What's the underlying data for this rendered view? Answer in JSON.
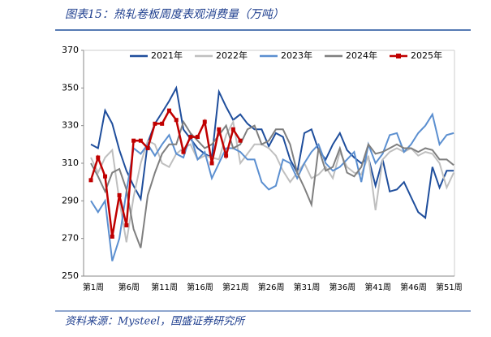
{
  "chart_data": {
    "type": "line",
    "title": "图表15：热轧卷板周度表观消费量（万吨）",
    "source": "资料来源：Mysteel，国盛证券研究所",
    "categories": [
      "第1周",
      null,
      null,
      null,
      null,
      "第6周",
      null,
      null,
      null,
      null,
      "第11周",
      null,
      null,
      null,
      null,
      "第16周",
      null,
      null,
      null,
      null,
      "第21周",
      null,
      null,
      null,
      null,
      "第26周",
      null,
      null,
      null,
      null,
      "第31周",
      null,
      null,
      null,
      null,
      "第36周",
      null,
      null,
      null,
      null,
      "第41周",
      null,
      null,
      null,
      null,
      "第46周",
      null,
      null,
      null,
      null,
      "第51周",
      null
    ],
    "ylim": [
      250,
      370
    ],
    "yticks": [
      250,
      270,
      290,
      310,
      330,
      350,
      370
    ],
    "legend": "top",
    "series": [
      {
        "name": "2021年",
        "color": "#1f4e9c",
        "values": [
          320,
          318,
          338,
          331,
          317,
          306,
          298,
          291,
          321,
          331,
          337,
          343,
          350,
          328,
          323,
          318,
          315,
          313,
          348,
          340,
          333,
          336,
          331,
          328,
          328,
          319,
          326,
          324,
          312,
          305,
          326,
          328,
          317,
          312,
          320,
          326,
          317,
          313,
          310,
          313,
          298,
          312,
          295,
          296,
          300,
          292,
          284,
          281,
          308,
          297,
          306,
          306
        ]
      },
      {
        "name": "2022年",
        "color": "#bfbfbf",
        "values": [
          313,
          305,
          313,
          317,
          290,
          268,
          292,
          310,
          322,
          320,
          310,
          308,
          315,
          318,
          320,
          312,
          314,
          313,
          312,
          325,
          332,
          310,
          315,
          320,
          320,
          318,
          314,
          306,
          300,
          305,
          310,
          302,
          304,
          308,
          302,
          316,
          308,
          305,
          304,
          314,
          285,
          312,
          316,
          318,
          316,
          318,
          314,
          316,
          315,
          310,
          297,
          305
        ]
      },
      {
        "name": "2023年",
        "color": "#5b8fd0",
        "values": [
          290,
          284,
          290,
          258,
          270,
          295,
          318,
          315,
          320,
          314,
          320,
          325,
          315,
          313,
          325,
          312,
          316,
          302,
          310,
          318,
          318,
          316,
          312,
          312,
          300,
          296,
          298,
          312,
          310,
          302,
          310,
          316,
          320,
          310,
          306,
          308,
          312,
          316,
          300,
          320,
          310,
          315,
          325,
          326,
          316,
          320,
          326,
          330,
          336,
          320,
          325,
          326
        ]
      },
      {
        "name": "2024年",
        "color": "#7f7f7f",
        "values": [
          310,
          303,
          295,
          305,
          307,
          296,
          275,
          265,
          293,
          305,
          315,
          320,
          320,
          332,
          326,
          322,
          318,
          320,
          325,
          330,
          318,
          320,
          328,
          330,
          320,
          322,
          328,
          328,
          320,
          305,
          297,
          288,
          318,
          306,
          308,
          318,
          305,
          303,
          308,
          320,
          315,
          316,
          318,
          320,
          318,
          318,
          316,
          318,
          317,
          312,
          312,
          309
        ]
      },
      {
        "name": "2025年",
        "color": "#c00000",
        "markers": true,
        "values": [
          301,
          313,
          303,
          271,
          293,
          277,
          322,
          322,
          318,
          331,
          331,
          338,
          333,
          316,
          324,
          324,
          332,
          310,
          328,
          314,
          328,
          322,
          null,
          null,
          null,
          null,
          null,
          null,
          null,
          null,
          null,
          null,
          null,
          null,
          null,
          null,
          null,
          null,
          null,
          null,
          null,
          null,
          null,
          null,
          null,
          null,
          null,
          null,
          null,
          null,
          null,
          null
        ]
      }
    ]
  }
}
